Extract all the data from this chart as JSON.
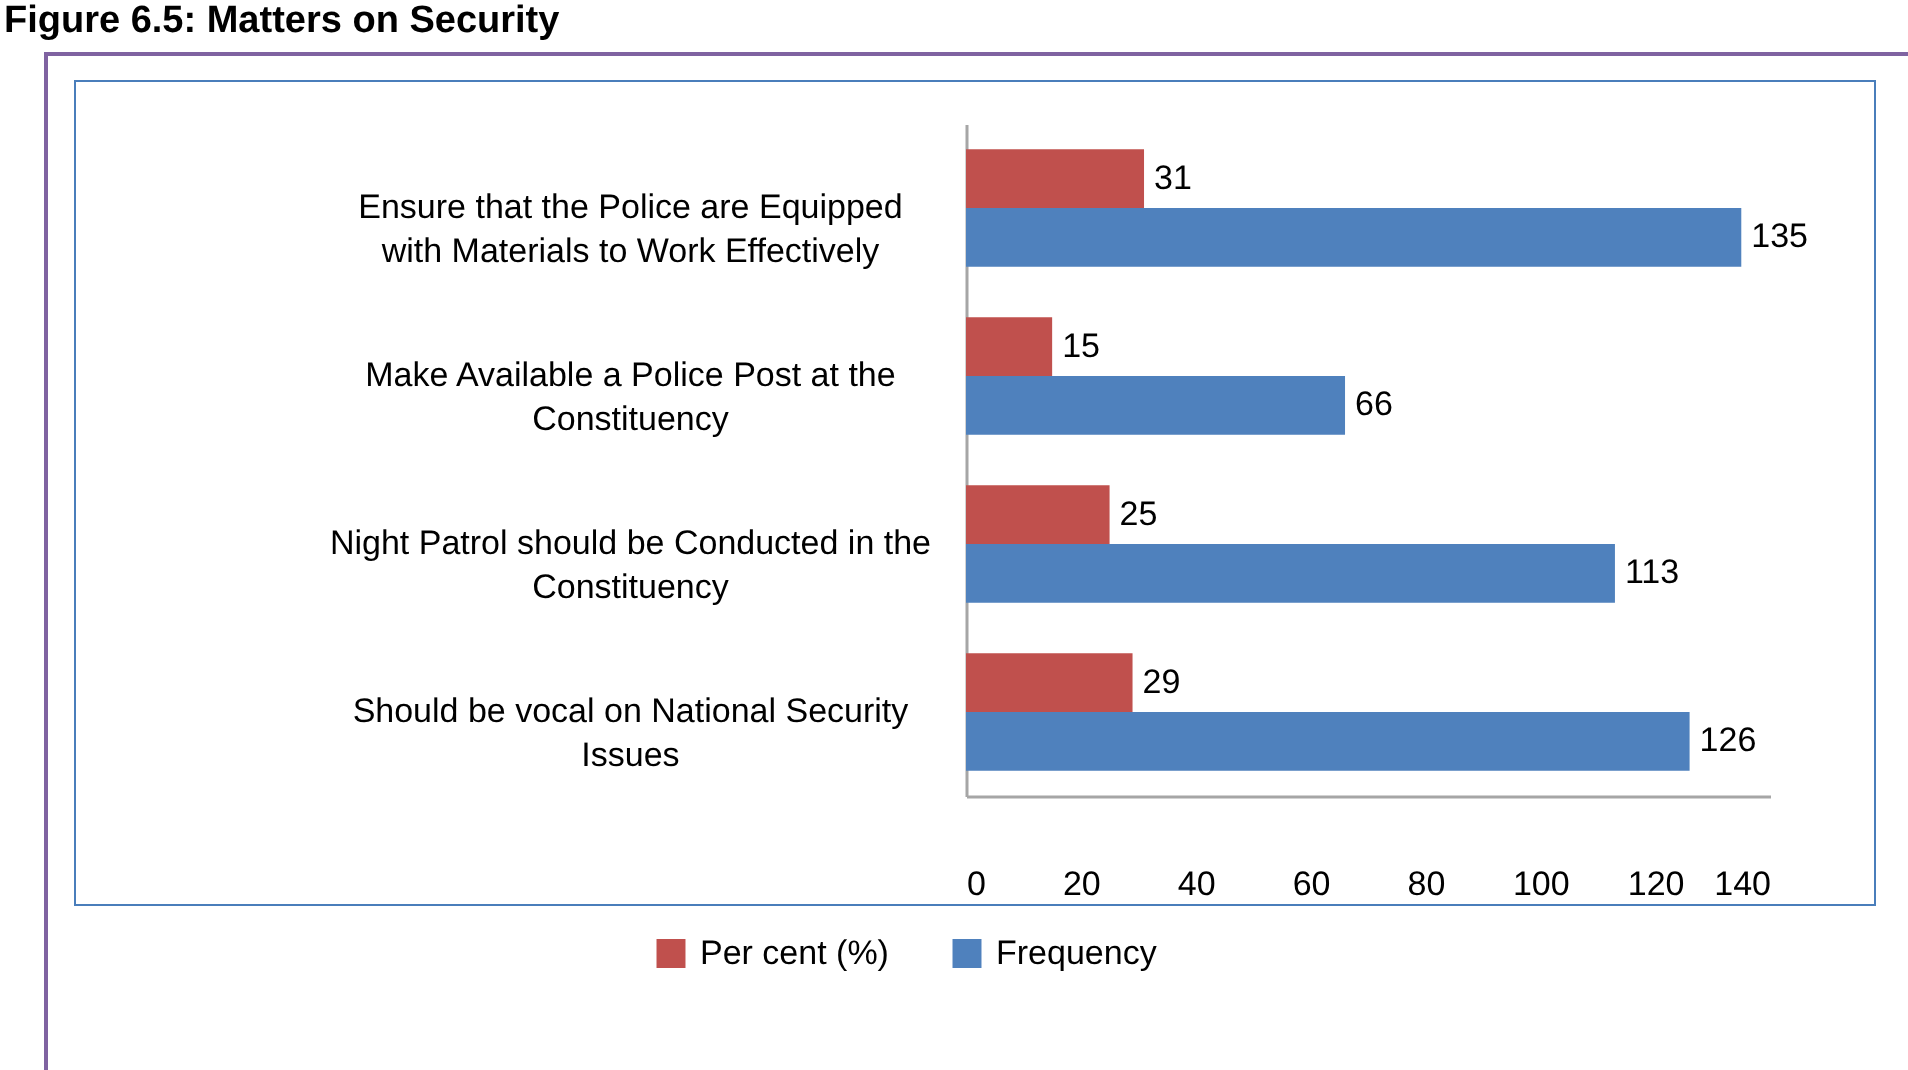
{
  "chart_data": {
    "type": "bar",
    "orientation": "horizontal",
    "title": "Figure 6.5: Matters on Security",
    "categories": [
      "Ensure that the Police are Equipped with Materials to Work Effectively",
      "Make Available a Police Post at the Constituency",
      "Night Patrol should be Conducted in the Constituency",
      "Should be vocal on National Security Issues"
    ],
    "series": [
      {
        "name": "Per cent (%)",
        "color": "#c0504d",
        "values": [
          31,
          15,
          25,
          29
        ]
      },
      {
        "name": "Frequency",
        "color": "#4f81bd",
        "values": [
          135,
          66,
          113,
          126
        ]
      }
    ],
    "xlim": [
      0,
      140
    ],
    "xticks": [
      0,
      20,
      40,
      60,
      80,
      100,
      120,
      140
    ],
    "legend": "bottom",
    "data_labels": true
  }
}
